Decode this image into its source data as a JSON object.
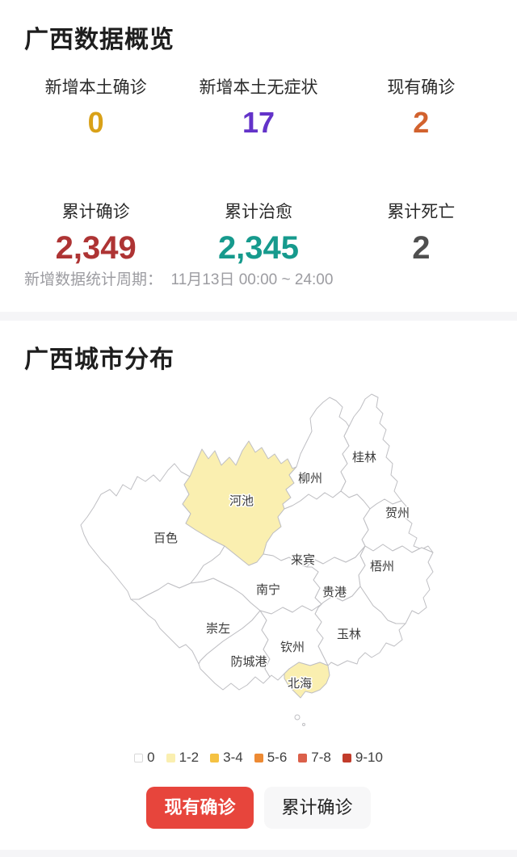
{
  "overview": {
    "title": "广西数据概览",
    "stats": [
      {
        "label": "新增本土确诊",
        "value": "0",
        "color": "#D9A118"
      },
      {
        "label": "新增本土无症状",
        "value": "17",
        "color": "#6333C9"
      },
      {
        "label": "现有确诊",
        "value": "2",
        "color": "#D2622E"
      },
      {
        "label": "累计确诊",
        "value": "2,349",
        "color": "#AE3434"
      },
      {
        "label": "累计治愈",
        "value": "2,345",
        "color": "#169A8D"
      },
      {
        "label": "累计死亡",
        "value": "2",
        "color": "#4F4F4F"
      }
    ],
    "period_note": "新增数据统计周期：  11月13日 00:00 ~ 24:00"
  },
  "map_section": {
    "title": "广西城市分布",
    "map_border_color": "#BFBFC3",
    "map_label_color": "#3A3A3A",
    "legend": [
      {
        "label": "0",
        "color": "#FFFFFF"
      },
      {
        "label": "1-2",
        "color": "#FAEFB0"
      },
      {
        "label": "3-4",
        "color": "#F5C242"
      },
      {
        "label": "5-6",
        "color": "#ED8A33"
      },
      {
        "label": "7-8",
        "color": "#DB604A"
      },
      {
        "label": "9-10",
        "color": "#C23C2B"
      }
    ],
    "cities": [
      {
        "name": "百色",
        "bucket": "0"
      },
      {
        "name": "河池",
        "bucket": "1-2"
      },
      {
        "name": "柳州",
        "bucket": "0"
      },
      {
        "name": "桂林",
        "bucket": "0"
      },
      {
        "name": "贺州",
        "bucket": "0"
      },
      {
        "name": "梧州",
        "bucket": "0"
      },
      {
        "name": "来宾",
        "bucket": "0"
      },
      {
        "name": "贵港",
        "bucket": "0"
      },
      {
        "name": "玉林",
        "bucket": "0"
      },
      {
        "name": "南宁",
        "bucket": "0"
      },
      {
        "name": "崇左",
        "bucket": "0"
      },
      {
        "name": "防城港",
        "bucket": "0"
      },
      {
        "name": "钦州",
        "bucket": "0"
      },
      {
        "name": "北海",
        "bucket": "1-2"
      }
    ],
    "buttons": [
      {
        "label": "现有确诊",
        "active": true,
        "bg": "#E7453C",
        "text_color": "#FFFFFF"
      },
      {
        "label": "累计确诊",
        "active": false,
        "bg": "#F7F7F8",
        "text_color": "#222222"
      }
    ]
  }
}
